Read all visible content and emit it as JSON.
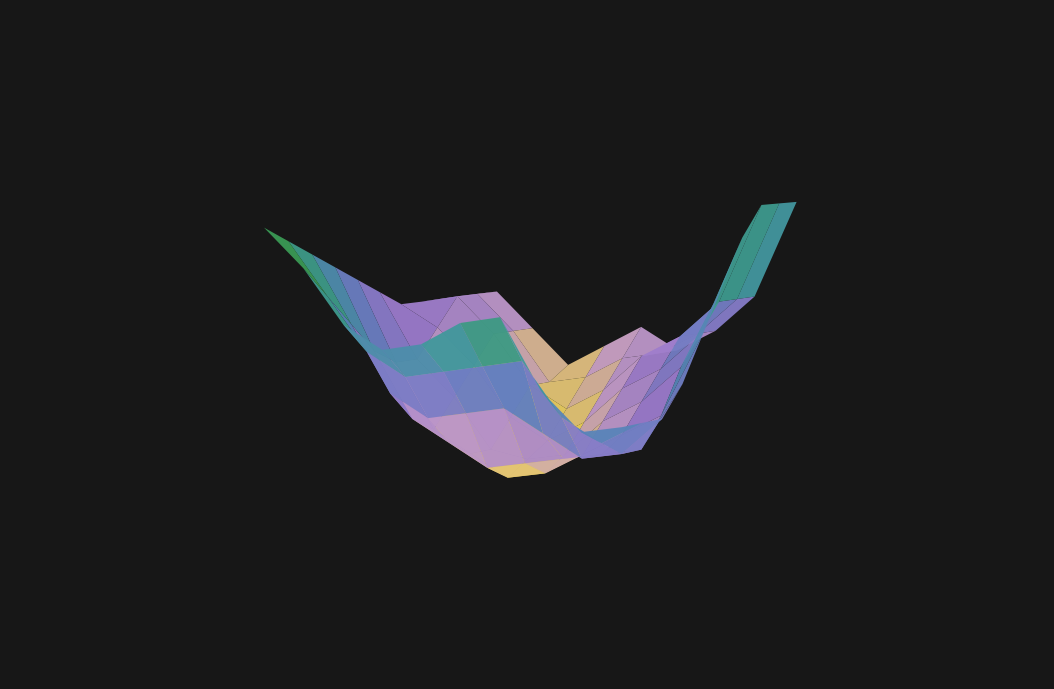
{
  "chart_data": {
    "type": "surface",
    "x": [
      0,
      1,
      2,
      3,
      4,
      5,
      6,
      7,
      8,
      9
    ],
    "y": [
      0,
      1,
      2,
      3,
      4,
      5,
      6,
      7,
      8,
      9
    ],
    "z": [
      [
        10,
        9,
        7.5,
        7,
        7.5,
        8.5,
        9,
        7,
        6,
        6.5
      ],
      [
        9,
        7.5,
        6,
        5.5,
        6,
        6.5,
        7,
        5.5,
        5,
        6
      ],
      [
        8,
        6,
        4,
        3.5,
        4,
        4.5,
        4,
        3.5,
        4,
        5.5
      ],
      [
        7,
        4.5,
        2.5,
        2,
        1.5,
        2,
        2.5,
        3,
        3.5,
        6
      ],
      [
        6,
        3.5,
        1.5,
        1,
        0.5,
        1,
        2,
        3,
        4,
        7
      ],
      [
        5,
        3,
        2,
        0.5,
        0.5,
        1,
        2.5,
        3.5,
        5,
        8
      ],
      [
        4,
        3.5,
        2.5,
        1,
        0.5,
        1.5,
        3,
        4,
        5.5,
        9
      ],
      [
        3.5,
        4,
        3,
        1.5,
        1,
        2,
        3.5,
        4.5,
        6,
        9.5
      ],
      [
        3,
        3.5,
        2.5,
        1,
        1.5,
        2.5,
        3,
        4,
        5.5,
        9
      ],
      [
        2.5,
        3,
        2,
        1,
        2,
        3,
        2.5,
        3.5,
        5,
        8.5
      ]
    ],
    "tick_labels": false
  }
}
